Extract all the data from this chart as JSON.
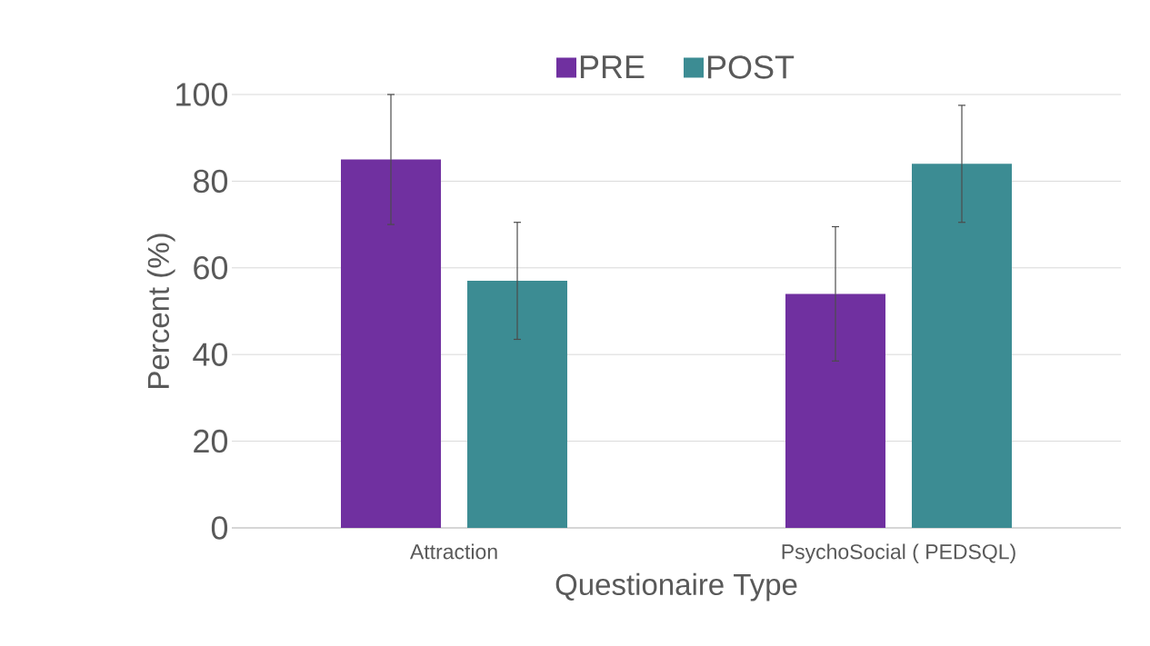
{
  "chart_data": {
    "type": "bar",
    "xlabel": "Questionaire Type",
    "ylabel": "Percent (%)",
    "categories": [
      "Attraction",
      "PsychoSocial ( PEDSQL)"
    ],
    "series": [
      {
        "name": "PRE",
        "color": "#7030a0",
        "values": [
          85,
          54
        ],
        "errors": [
          15,
          15.5
        ]
      },
      {
        "name": "POST",
        "color": "#3c8c93",
        "values": [
          57,
          84
        ],
        "errors": [
          13.5,
          13.5
        ]
      }
    ],
    "ylim": [
      0,
      100
    ],
    "yticks": [
      0,
      20,
      40,
      60,
      80,
      100
    ],
    "grid": "y",
    "legend": "top"
  }
}
